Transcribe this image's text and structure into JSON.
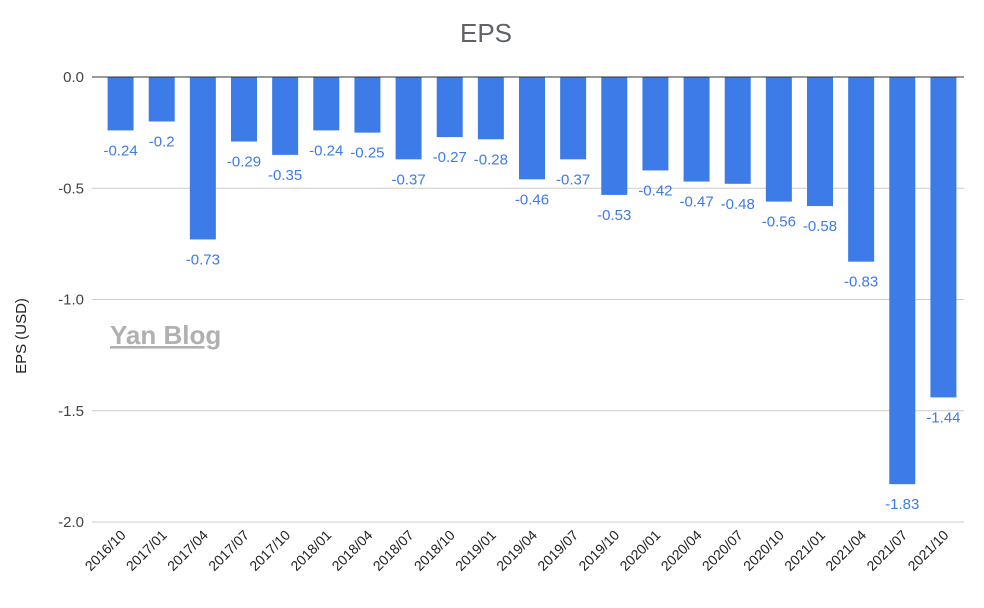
{
  "chart_data": {
    "type": "bar",
    "title": "EPS",
    "xlabel": "",
    "ylabel": "EPS (USD)",
    "ylim": [
      -2.0,
      0.0
    ],
    "yticks": [
      "0.0",
      "-0.5",
      "-1.0",
      "-1.5",
      "-2.0"
    ],
    "grid": true,
    "categories": [
      "2016/10",
      "2017/01",
      "2017/04",
      "2017/07",
      "2017/10",
      "2018/01",
      "2018/04",
      "2018/07",
      "2018/10",
      "2019/01",
      "2019/04",
      "2019/07",
      "2019/10",
      "2020/01",
      "2020/04",
      "2020/07",
      "2020/10",
      "2021/01",
      "2021/04",
      "2021/07",
      "2021/10"
    ],
    "values": [
      -0.24,
      -0.2,
      -0.73,
      -0.29,
      -0.35,
      -0.24,
      -0.25,
      -0.37,
      -0.27,
      -0.28,
      -0.46,
      -0.37,
      -0.53,
      -0.42,
      -0.47,
      -0.48,
      -0.56,
      -0.58,
      -0.83,
      -1.83,
      -1.44
    ],
    "data_labels": [
      "-0.24",
      "-0.2",
      "-0.73",
      "-0.29",
      "-0.35",
      "-0.24",
      "-0.25",
      "-0.37",
      "-0.27",
      "-0.28",
      "-0.46",
      "-0.37",
      "-0.53",
      "-0.42",
      "-0.47",
      "-0.48",
      "-0.56",
      "-0.58",
      "-0.83",
      "-1.83",
      "-1.44"
    ],
    "bar_color": "#3d7be8",
    "watermark": "Yan Blog"
  }
}
